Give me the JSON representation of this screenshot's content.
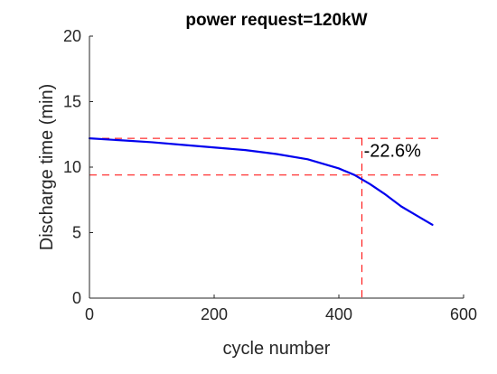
{
  "chart_data": {
    "type": "line",
    "title": "power request=120kW",
    "xlabel": "cycle number",
    "ylabel": "Discharge time (min)",
    "xlim": [
      0,
      600
    ],
    "ylim": [
      0,
      20
    ],
    "xticks": [
      0,
      200,
      400,
      600
    ],
    "yticks": [
      0,
      5,
      10,
      15,
      20
    ],
    "grid": false,
    "series": [
      {
        "color": "#0000ee",
        "x": [
          0,
          50,
          100,
          150,
          200,
          250,
          300,
          350,
          400,
          425,
          450,
          475,
          500,
          525,
          550
        ],
        "y": [
          12.2,
          12.05,
          11.9,
          11.7,
          11.5,
          11.3,
          11.0,
          10.6,
          9.9,
          9.4,
          8.7,
          7.9,
          7.0,
          6.3,
          5.6
        ]
      }
    ],
    "reference_lines": {
      "color": "#ff0000",
      "horizontal": [
        12.2,
        9.4
      ],
      "vertical": [
        437
      ]
    },
    "annotation": {
      "text": "-22.6%",
      "x": 440,
      "y": 10.8
    }
  }
}
